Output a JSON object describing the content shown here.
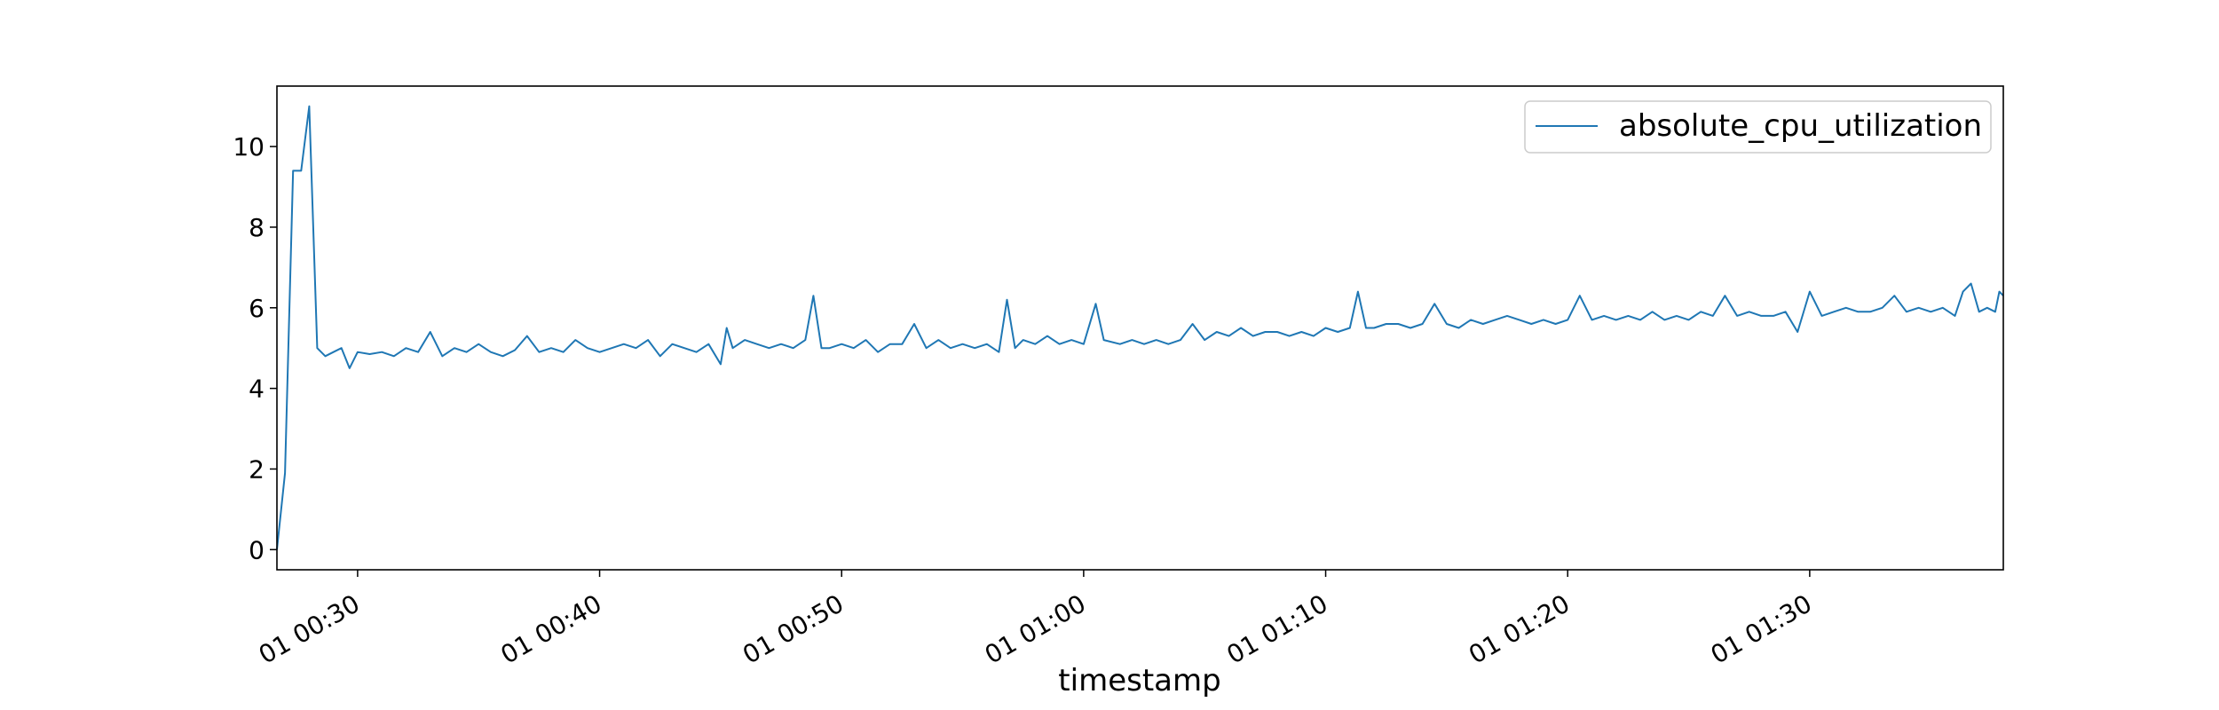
{
  "chart_data": {
    "type": "line",
    "title": "",
    "xlabel": "timestamp",
    "ylabel": "",
    "grid": false,
    "legend_position": "top-right",
    "x_range": [
      "01 00:26:40",
      "01 01:38:00"
    ],
    "ylim": [
      -0.5,
      11.5
    ],
    "y_ticks": [
      0,
      2,
      4,
      6,
      8,
      10
    ],
    "x_ticks": [
      {
        "time": "01 00:30:00",
        "label": "01 00:30"
      },
      {
        "time": "01 00:40:00",
        "label": "01 00:40"
      },
      {
        "time": "01 00:50:00",
        "label": "01 00:50"
      },
      {
        "time": "01 01:00:00",
        "label": "01 01:00"
      },
      {
        "time": "01 01:10:00",
        "label": "01 01:10"
      },
      {
        "time": "01 01:20:00",
        "label": "01 01:20"
      },
      {
        "time": "01 01:30:00",
        "label": "01 01:30"
      }
    ],
    "series": [
      {
        "name": "absolute_cpu_utilization",
        "color": "#1f77b4",
        "points": [
          [
            "01 00:26:40",
            0.0
          ],
          [
            "01 00:27:00",
            1.9
          ],
          [
            "01 00:27:20",
            9.4
          ],
          [
            "01 00:27:40",
            9.4
          ],
          [
            "01 00:28:00",
            11.0
          ],
          [
            "01 00:28:20",
            5.0
          ],
          [
            "01 00:28:40",
            4.8
          ],
          [
            "01 00:29:00",
            4.9
          ],
          [
            "01 00:29:20",
            5.0
          ],
          [
            "01 00:29:40",
            4.5
          ],
          [
            "01 00:30:00",
            4.9
          ],
          [
            "01 00:30:30",
            4.85
          ],
          [
            "01 00:31:00",
            4.9
          ],
          [
            "01 00:31:30",
            4.8
          ],
          [
            "01 00:32:00",
            5.0
          ],
          [
            "01 00:32:30",
            4.9
          ],
          [
            "01 00:33:00",
            5.4
          ],
          [
            "01 00:33:30",
            4.8
          ],
          [
            "01 00:34:00",
            5.0
          ],
          [
            "01 00:34:30",
            4.9
          ],
          [
            "01 00:35:00",
            5.1
          ],
          [
            "01 00:35:30",
            4.9
          ],
          [
            "01 00:36:00",
            4.8
          ],
          [
            "01 00:36:30",
            4.95
          ],
          [
            "01 00:37:00",
            5.3
          ],
          [
            "01 00:37:30",
            4.9
          ],
          [
            "01 00:38:00",
            5.0
          ],
          [
            "01 00:38:30",
            4.9
          ],
          [
            "01 00:39:00",
            5.2
          ],
          [
            "01 00:39:30",
            5.0
          ],
          [
            "01 00:40:00",
            4.9
          ],
          [
            "01 00:40:30",
            5.0
          ],
          [
            "01 00:41:00",
            5.1
          ],
          [
            "01 00:41:30",
            5.0
          ],
          [
            "01 00:42:00",
            5.2
          ],
          [
            "01 00:42:30",
            4.8
          ],
          [
            "01 00:43:00",
            5.1
          ],
          [
            "01 00:43:30",
            5.0
          ],
          [
            "01 00:44:00",
            4.9
          ],
          [
            "01 00:44:30",
            5.1
          ],
          [
            "01 00:45:00",
            4.6
          ],
          [
            "01 00:45:15",
            5.5
          ],
          [
            "01 00:45:30",
            5.0
          ],
          [
            "01 00:46:00",
            5.2
          ],
          [
            "01 00:46:30",
            5.1
          ],
          [
            "01 00:47:00",
            5.0
          ],
          [
            "01 00:47:30",
            5.1
          ],
          [
            "01 00:48:00",
            5.0
          ],
          [
            "01 00:48:30",
            5.2
          ],
          [
            "01 00:48:50",
            6.3
          ],
          [
            "01 00:49:10",
            5.0
          ],
          [
            "01 00:49:30",
            5.0
          ],
          [
            "01 00:50:00",
            5.1
          ],
          [
            "01 00:50:30",
            5.0
          ],
          [
            "01 00:51:00",
            5.2
          ],
          [
            "01 00:51:30",
            4.9
          ],
          [
            "01 00:52:00",
            5.1
          ],
          [
            "01 00:52:30",
            5.1
          ],
          [
            "01 00:53:00",
            5.6
          ],
          [
            "01 00:53:30",
            5.0
          ],
          [
            "01 00:54:00",
            5.2
          ],
          [
            "01 00:54:30",
            5.0
          ],
          [
            "01 00:55:00",
            5.1
          ],
          [
            "01 00:55:30",
            5.0
          ],
          [
            "01 00:56:00",
            5.1
          ],
          [
            "01 00:56:30",
            4.9
          ],
          [
            "01 00:56:50",
            6.2
          ],
          [
            "01 00:57:10",
            5.0
          ],
          [
            "01 00:57:30",
            5.2
          ],
          [
            "01 00:58:00",
            5.1
          ],
          [
            "01 00:58:30",
            5.3
          ],
          [
            "01 00:59:00",
            5.1
          ],
          [
            "01 00:59:30",
            5.2
          ],
          [
            "01 01:00:00",
            5.1
          ],
          [
            "01 01:00:30",
            6.1
          ],
          [
            "01 01:00:50",
            5.2
          ],
          [
            "01 01:01:30",
            5.1
          ],
          [
            "01 01:02:00",
            5.2
          ],
          [
            "01 01:02:30",
            5.1
          ],
          [
            "01 01:03:00",
            5.2
          ],
          [
            "01 01:03:30",
            5.1
          ],
          [
            "01 01:04:00",
            5.2
          ],
          [
            "01 01:04:30",
            5.6
          ],
          [
            "01 01:05:00",
            5.2
          ],
          [
            "01 01:05:30",
            5.4
          ],
          [
            "01 01:06:00",
            5.3
          ],
          [
            "01 01:06:30",
            5.5
          ],
          [
            "01 01:07:00",
            5.3
          ],
          [
            "01 01:07:30",
            5.4
          ],
          [
            "01 01:08:00",
            5.4
          ],
          [
            "01 01:08:30",
            5.3
          ],
          [
            "01 01:09:00",
            5.4
          ],
          [
            "01 01:09:30",
            5.3
          ],
          [
            "01 01:10:00",
            5.5
          ],
          [
            "01 01:10:30",
            5.4
          ],
          [
            "01 01:11:00",
            5.5
          ],
          [
            "01 01:11:20",
            6.4
          ],
          [
            "01 01:11:40",
            5.5
          ],
          [
            "01 01:12:00",
            5.5
          ],
          [
            "01 01:12:30",
            5.6
          ],
          [
            "01 01:13:00",
            5.6
          ],
          [
            "01 01:13:30",
            5.5
          ],
          [
            "01 01:14:00",
            5.6
          ],
          [
            "01 01:14:30",
            6.1
          ],
          [
            "01 01:15:00",
            5.6
          ],
          [
            "01 01:15:30",
            5.5
          ],
          [
            "01 01:16:00",
            5.7
          ],
          [
            "01 01:16:30",
            5.6
          ],
          [
            "01 01:17:00",
            5.7
          ],
          [
            "01 01:17:30",
            5.8
          ],
          [
            "01 01:18:00",
            5.7
          ],
          [
            "01 01:18:30",
            5.6
          ],
          [
            "01 01:19:00",
            5.7
          ],
          [
            "01 01:19:30",
            5.6
          ],
          [
            "01 01:20:00",
            5.7
          ],
          [
            "01 01:20:30",
            6.3
          ],
          [
            "01 01:21:00",
            5.7
          ],
          [
            "01 01:21:30",
            5.8
          ],
          [
            "01 01:22:00",
            5.7
          ],
          [
            "01 01:22:30",
            5.8
          ],
          [
            "01 01:23:00",
            5.7
          ],
          [
            "01 01:23:30",
            5.9
          ],
          [
            "01 01:24:00",
            5.7
          ],
          [
            "01 01:24:30",
            5.8
          ],
          [
            "01 01:25:00",
            5.7
          ],
          [
            "01 01:25:30",
            5.9
          ],
          [
            "01 01:26:00",
            5.8
          ],
          [
            "01 01:26:30",
            6.3
          ],
          [
            "01 01:27:00",
            5.8
          ],
          [
            "01 01:27:30",
            5.9
          ],
          [
            "01 01:28:00",
            5.8
          ],
          [
            "01 01:28:30",
            5.8
          ],
          [
            "01 01:29:00",
            5.9
          ],
          [
            "01 01:29:30",
            5.4
          ],
          [
            "01 01:30:00",
            6.4
          ],
          [
            "01 01:30:30",
            5.8
          ],
          [
            "01 01:31:00",
            5.9
          ],
          [
            "01 01:31:30",
            6.0
          ],
          [
            "01 01:32:00",
            5.9
          ],
          [
            "01 01:32:30",
            5.9
          ],
          [
            "01 01:33:00",
            6.0
          ],
          [
            "01 01:33:30",
            6.3
          ],
          [
            "01 01:34:00",
            5.9
          ],
          [
            "01 01:34:30",
            6.0
          ],
          [
            "01 01:35:00",
            5.9
          ],
          [
            "01 01:35:30",
            6.0
          ],
          [
            "01 01:36:00",
            5.8
          ],
          [
            "01 01:36:20",
            6.4
          ],
          [
            "01 01:36:40",
            6.6
          ],
          [
            "01 01:37:00",
            5.9
          ],
          [
            "01 01:37:20",
            6.0
          ],
          [
            "01 01:37:40",
            5.9
          ],
          [
            "01 01:37:50",
            6.4
          ],
          [
            "01 01:38:00",
            6.3
          ]
        ]
      }
    ]
  }
}
